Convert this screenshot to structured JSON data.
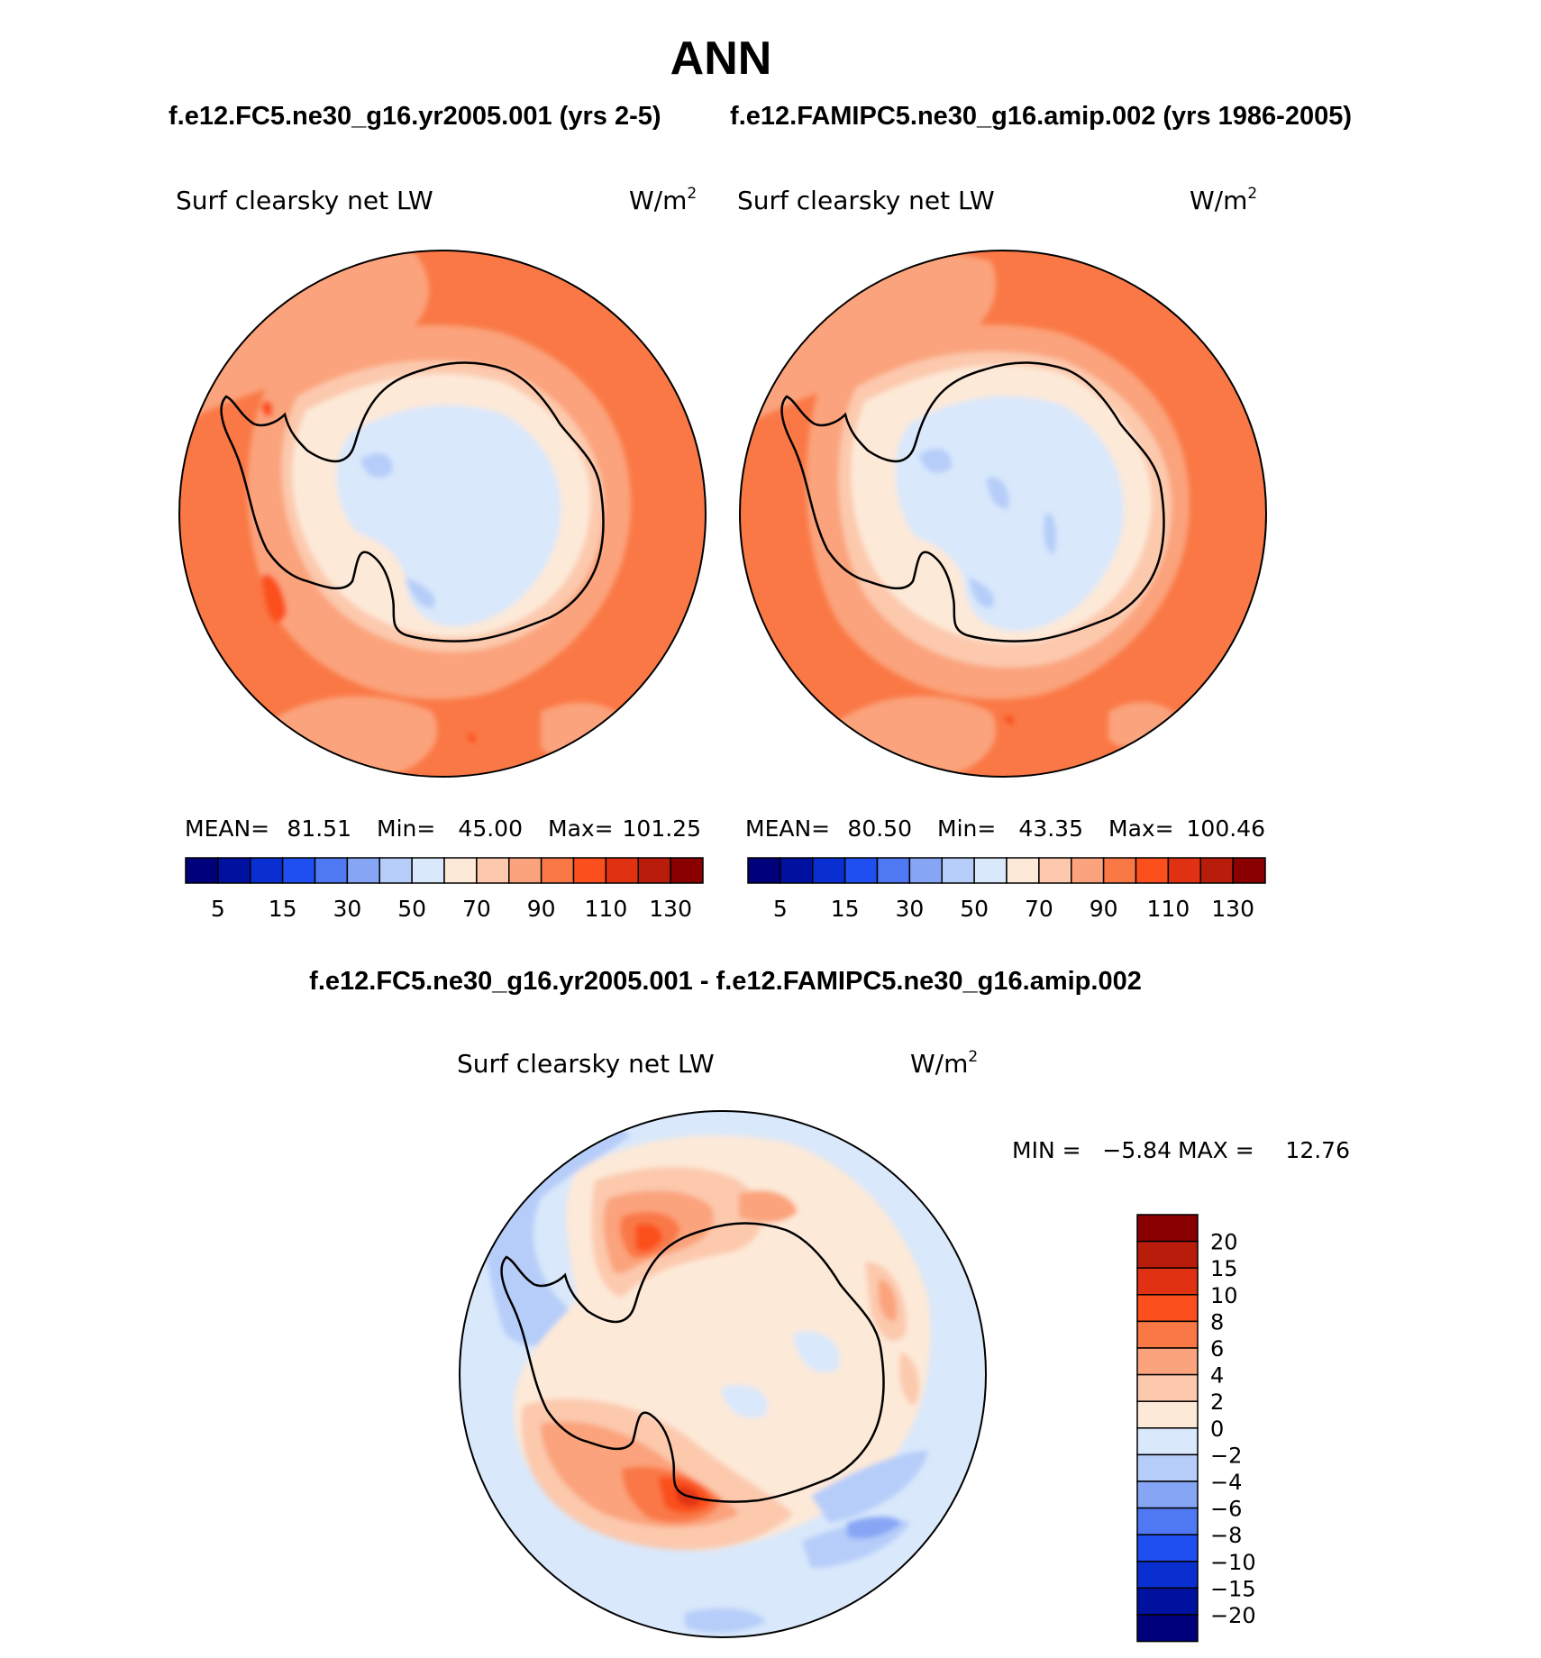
{
  "title": "ANN",
  "colors": {
    "scale": [
      "#00007a",
      "#0011a0",
      "#0a2fd0",
      "#1f4ff0",
      "#4f79f2",
      "#86a6f5",
      "#b6cdf9",
      "#d9e8fb",
      "#fde9d8",
      "#fcc9ad",
      "#fba37c",
      "#fa7846",
      "#fb501e",
      "#e03212",
      "#b81c0b",
      "#8a0000"
    ],
    "diff_scale": [
      "#00007a",
      "#0011a0",
      "#0a2fd0",
      "#1f4ff0",
      "#4f79f2",
      "#86a6f5",
      "#b6cdf9",
      "#d9e8fb",
      "#fde9d8",
      "#fcc9ad",
      "#fba37c",
      "#fa7846",
      "#fb501e",
      "#e03212",
      "#b81c0b",
      "#8a0000"
    ],
    "land_outline": "#000000"
  },
  "panels": [
    {
      "case_title": "f.e12.FC5.ne30_g16.yr2005.001 (yrs 2-5)",
      "variable": "Surf clearsky net LW",
      "units": "W/m",
      "units_sup": "2",
      "stats": {
        "mean_label": "MEAN=",
        "mean": "81.51",
        "min_label": "Min=",
        "min": "45.00",
        "max_label": "Max=",
        "max": "101.25"
      }
    },
    {
      "case_title": "f.e12.FAMIPC5.ne30_g16.amip.002 (yrs 1986-2005)",
      "variable": "Surf clearsky net LW",
      "units": "W/m",
      "units_sup": "2",
      "stats": {
        "mean_label": "MEAN=",
        "mean": "80.50",
        "min_label": "Min=",
        "min": "43.35",
        "max_label": "Max=",
        "max": "100.46"
      }
    }
  ],
  "colorbar_labels": [
    "5",
    "15",
    "30",
    "50",
    "70",
    "90",
    "110",
    "130"
  ],
  "diff": {
    "title": "f.e12.FC5.ne30_g16.yr2005.001 - f.e12.FAMIPC5.ne30_g16.amip.002",
    "variable": "Surf clearsky net LW",
    "units": "W/m",
    "units_sup": "2",
    "min_label": "MIN =",
    "min": "−5.84",
    "max_label": "MAX =",
    "max": "12.76",
    "colorbar_labels": [
      "20",
      "15",
      "10",
      "8",
      "6",
      "4",
      "2",
      "0",
      "−2",
      "−4",
      "−6",
      "−8",
      "−10",
      "−15",
      "−20"
    ]
  }
}
